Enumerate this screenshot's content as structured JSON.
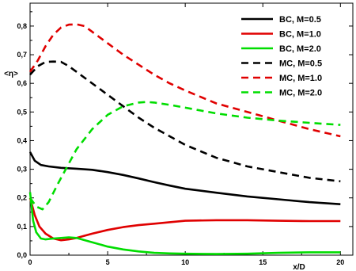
{
  "chart_data": {
    "type": "line",
    "title": "",
    "xlabel": "x/D",
    "ylabel": "<η>",
    "xlim": [
      0,
      20.8
    ],
    "ylim": [
      0,
      0.88
    ],
    "grid": false,
    "legend_position": "top-right",
    "x_ticks": [
      0,
      5,
      10,
      15,
      20
    ],
    "x_tick_labels": [
      "0",
      "5",
      "10",
      "15",
      "20"
    ],
    "y_ticks": [
      0.0,
      0.1,
      0.2,
      0.3,
      0.4,
      0.5,
      0.6,
      0.7,
      0.8
    ],
    "y_tick_labels": [
      "0,0",
      "0,1",
      "0,2",
      "0,3",
      "0,4",
      "0,5",
      "0,6",
      "0,7",
      "0,8"
    ],
    "series": [
      {
        "name": "BC, M=0.5",
        "color": "#000000",
        "dash": "solid",
        "x": [
          0,
          0.3,
          0.7,
          1.2,
          2,
          3,
          4,
          5,
          6,
          7,
          8,
          9,
          10,
          12,
          14,
          16,
          18,
          20
        ],
        "y": [
          0.36,
          0.33,
          0.315,
          0.31,
          0.305,
          0.302,
          0.298,
          0.29,
          0.28,
          0.268,
          0.255,
          0.243,
          0.232,
          0.218,
          0.205,
          0.195,
          0.185,
          0.178
        ]
      },
      {
        "name": "BC, M=1.0",
        "color": "#e00000",
        "dash": "solid",
        "x": [
          0,
          0.3,
          0.6,
          1,
          1.5,
          2,
          2.5,
          3,
          4,
          5,
          6,
          7,
          8,
          9,
          10,
          12,
          14,
          16,
          18,
          20
        ],
        "y": [
          0.2,
          0.14,
          0.1,
          0.075,
          0.058,
          0.052,
          0.055,
          0.06,
          0.075,
          0.088,
          0.098,
          0.105,
          0.11,
          0.115,
          0.12,
          0.122,
          0.122,
          0.12,
          0.119,
          0.119
        ]
      },
      {
        "name": "BC, M=2.0",
        "color": "#00dd00",
        "dash": "solid",
        "x": [
          0,
          0.2,
          0.4,
          0.7,
          1,
          1.5,
          2,
          2.5,
          3,
          4,
          5,
          6,
          7,
          8,
          9,
          10,
          12,
          14,
          16,
          18,
          20
        ],
        "y": [
          0.22,
          0.12,
          0.08,
          0.058,
          0.055,
          0.058,
          0.06,
          0.062,
          0.06,
          0.045,
          0.03,
          0.02,
          0.013,
          0.008,
          0.006,
          0.005,
          0.004,
          0.005,
          0.008,
          0.01,
          0.01
        ]
      },
      {
        "name": "MC, M=0.5",
        "color": "#000000",
        "dash": "dashed",
        "x": [
          0,
          0.5,
          1,
          1.5,
          2,
          2.5,
          3,
          4,
          5,
          6,
          7,
          8,
          9,
          10,
          12,
          14,
          16,
          18,
          20
        ],
        "y": [
          0.63,
          0.66,
          0.675,
          0.676,
          0.675,
          0.66,
          0.64,
          0.6,
          0.56,
          0.52,
          0.48,
          0.445,
          0.415,
          0.385,
          0.34,
          0.31,
          0.29,
          0.27,
          0.258
        ]
      },
      {
        "name": "MC, M=1.0",
        "color": "#e00000",
        "dash": "dashed",
        "x": [
          0,
          0.5,
          1,
          1.5,
          2,
          2.5,
          3,
          3.5,
          4,
          5,
          6,
          7,
          8,
          9,
          10,
          12,
          14,
          16,
          18,
          20
        ],
        "y": [
          0.64,
          0.68,
          0.73,
          0.77,
          0.795,
          0.805,
          0.806,
          0.8,
          0.78,
          0.74,
          0.7,
          0.665,
          0.63,
          0.6,
          0.575,
          0.53,
          0.5,
          0.47,
          0.44,
          0.415
        ]
      },
      {
        "name": "MC, M=2.0",
        "color": "#00dd00",
        "dash": "dashed",
        "x": [
          0,
          0.4,
          0.8,
          1.2,
          1.8,
          2.5,
          3,
          4,
          5,
          6,
          7,
          7.5,
          8,
          9,
          10,
          12,
          14,
          16,
          18,
          20
        ],
        "y": [
          0.2,
          0.17,
          0.16,
          0.185,
          0.25,
          0.32,
          0.37,
          0.44,
          0.49,
          0.52,
          0.533,
          0.535,
          0.533,
          0.525,
          0.515,
          0.495,
          0.48,
          0.47,
          0.462,
          0.455
        ]
      }
    ]
  }
}
